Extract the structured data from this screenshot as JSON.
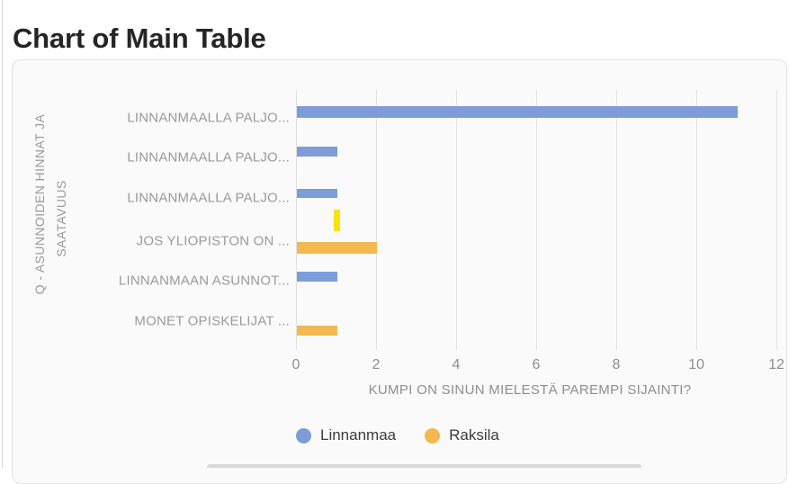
{
  "page": {
    "title": "Chart of Main Table"
  },
  "chart_data": {
    "type": "bar",
    "orientation": "horizontal",
    "xlabel": "KUMPI ON SINUN MIELESTÄ PAREMPI SIJAINTI?",
    "ylabel_line1": "Q - ASUNNOIDEN HINNAT JA",
    "ylabel_line2": "SAATAVUUS",
    "xlim": [
      0,
      12
    ],
    "xticks": [
      0,
      2,
      4,
      6,
      8,
      10,
      12
    ],
    "grid": true,
    "legend_position": "bottom-left",
    "categories": [
      "LINNANMAALLA PALJO...",
      "LINNANMAALLA PALJO...",
      "LINNANMAALLA PALJO...",
      "JOS YLIOPISTON ON ...",
      "LINNANMAAN ASUNNOT...",
      "MONET OPISKELIJAT ..."
    ],
    "series": [
      {
        "name": "Linnanmaa",
        "color": "#7d9cd8",
        "values": [
          11,
          1,
          1,
          0,
          1,
          0
        ]
      },
      {
        "name": "Raksila",
        "color": "#f2b950",
        "values": [
          0,
          0,
          0,
          2,
          0,
          1
        ]
      }
    ],
    "rows": [
      {
        "label": "LINNANMAALLA PALJO...",
        "series": "Linnanmaa",
        "value": 11
      },
      {
        "label": "LINNANMAALLA PALJO...",
        "series": "Linnanmaa",
        "value": 1
      },
      {
        "label": "LINNANMAALLA PALJO...",
        "series": "Linnanmaa",
        "value": 1
      },
      {
        "label": "JOS YLIOPISTON ON ...",
        "series": "Raksila",
        "value": 2
      },
      {
        "label": "LINNANMAAN ASUNNOT...",
        "series": "Linnanmaa",
        "value": 1
      },
      {
        "label": "MONET OPISKELIJAT ...",
        "series": "Raksila",
        "value": 1
      }
    ],
    "legend": [
      {
        "label": "Linnanmaa",
        "color": "#7d9cd8"
      },
      {
        "label": "Raksila",
        "color": "#f2b950"
      }
    ],
    "extra_marker": {
      "color": "#f6e402",
      "near_value": 1
    }
  },
  "colors": {
    "card_background": "#fafafa",
    "card_border": "#e3e3e3",
    "gridline": "#e2e2e2",
    "axis_text": "#8e8e8e",
    "category_text": "#9a9a9a",
    "title_text": "#252525",
    "legend_text": "#3c3c3c"
  }
}
